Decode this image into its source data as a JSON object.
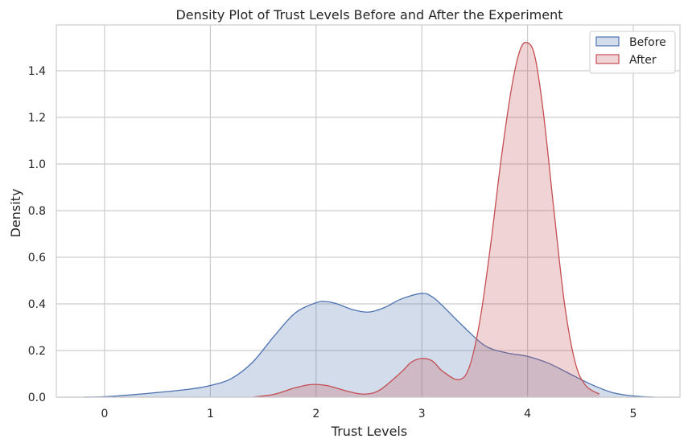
{
  "chart_data": {
    "type": "area",
    "title": "Density Plot of Trust Levels Before and After the Experiment",
    "xlabel": "Trust Levels",
    "ylabel": "Density",
    "xlim": [
      -0.45,
      5.3
    ],
    "ylim": [
      0,
      1.6
    ],
    "xticks": [
      0,
      1,
      2,
      3,
      4,
      5
    ],
    "xtick_labels": [
      "0",
      "1",
      "2",
      "3",
      "4",
      "5"
    ],
    "yticks": [
      0.0,
      0.2,
      0.4,
      0.6,
      0.8,
      1.0,
      1.2,
      1.4
    ],
    "ytick_labels": [
      "0.0",
      "0.2",
      "0.4",
      "0.6",
      "0.8",
      "1.0",
      "1.2",
      "1.4"
    ],
    "grid": true,
    "legend_position": "top-right",
    "series": [
      {
        "name": "Before",
        "color": "#4c72b0",
        "x": [
          -0.2,
          0.0,
          0.2,
          0.5,
          0.8,
          1.0,
          1.2,
          1.4,
          1.6,
          1.8,
          2.0,
          2.1,
          2.2,
          2.35,
          2.5,
          2.65,
          2.8,
          3.0,
          3.1,
          3.2,
          3.4,
          3.6,
          3.8,
          4.0,
          4.2,
          4.4,
          4.6,
          4.8,
          5.0,
          5.2
        ],
        "y": [
          0.0,
          0.002,
          0.008,
          0.02,
          0.034,
          0.05,
          0.08,
          0.15,
          0.26,
          0.36,
          0.405,
          0.41,
          0.4,
          0.375,
          0.365,
          0.385,
          0.42,
          0.445,
          0.43,
          0.39,
          0.3,
          0.22,
          0.19,
          0.175,
          0.145,
          0.1,
          0.055,
          0.02,
          0.005,
          0.0
        ]
      },
      {
        "name": "After",
        "color": "#c44e52",
        "x": [
          1.4,
          1.6,
          1.8,
          1.95,
          2.1,
          2.3,
          2.45,
          2.6,
          2.8,
          2.9,
          3.0,
          3.1,
          3.2,
          3.35,
          3.45,
          3.55,
          3.65,
          3.75,
          3.85,
          3.93,
          4.0,
          4.07,
          4.15,
          4.25,
          4.35,
          4.45,
          4.55,
          4.68
        ],
        "y": [
          0.0,
          0.012,
          0.04,
          0.054,
          0.05,
          0.025,
          0.013,
          0.03,
          0.105,
          0.15,
          0.166,
          0.155,
          0.11,
          0.075,
          0.13,
          0.33,
          0.65,
          1.02,
          1.33,
          1.49,
          1.52,
          1.46,
          1.22,
          0.8,
          0.4,
          0.15,
          0.05,
          0.013
        ]
      }
    ]
  }
}
